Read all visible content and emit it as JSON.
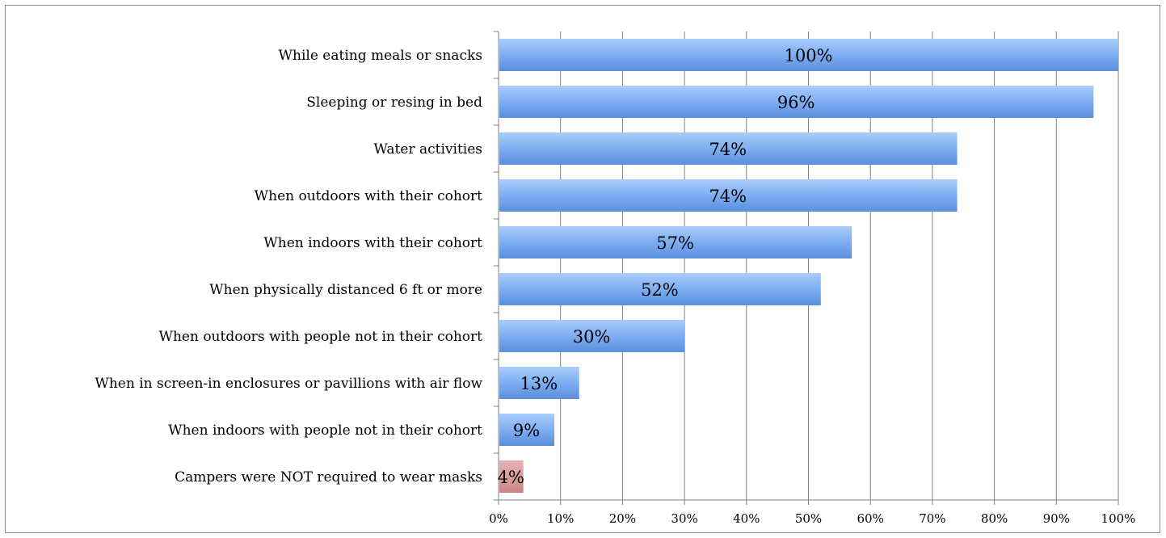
{
  "chart_data": {
    "type": "bar",
    "orientation": "horizontal",
    "title": "",
    "xlabel": "",
    "ylabel": "",
    "xlim": [
      0,
      100
    ],
    "x_ticks": [
      "0%",
      "10%",
      "20%",
      "30%",
      "40%",
      "50%",
      "60%",
      "70%",
      "80%",
      "90%",
      "100%"
    ],
    "grid": "vertical",
    "legend": "none",
    "categories": [
      "While eating meals or snacks",
      "Sleeping or resing in bed",
      "Water activities",
      "When outdoors with their cohort",
      "When indoors with their cohort",
      "When physically distanced 6 ft or more",
      "When outdoors with people not in their cohort",
      "When in screen-in enclosures or pavillions with air flow",
      "When indoors with people not in their cohort",
      "Campers were NOT required to wear masks"
    ],
    "values": [
      100,
      96,
      74,
      74,
      57,
      52,
      30,
      13,
      9,
      4
    ],
    "data_labels": [
      "100%",
      "96%",
      "74%",
      "74%",
      "57%",
      "52%",
      "30%",
      "13%",
      "9%",
      "4%"
    ],
    "colors": {
      "main_bar": "#7aaaf0",
      "highlight_bar": "#d79a9a",
      "gridline": "#7f7f7f",
      "axis": "#7f7f7f"
    },
    "highlight_categories": [
      "Campers were NOT required to wear masks"
    ]
  }
}
